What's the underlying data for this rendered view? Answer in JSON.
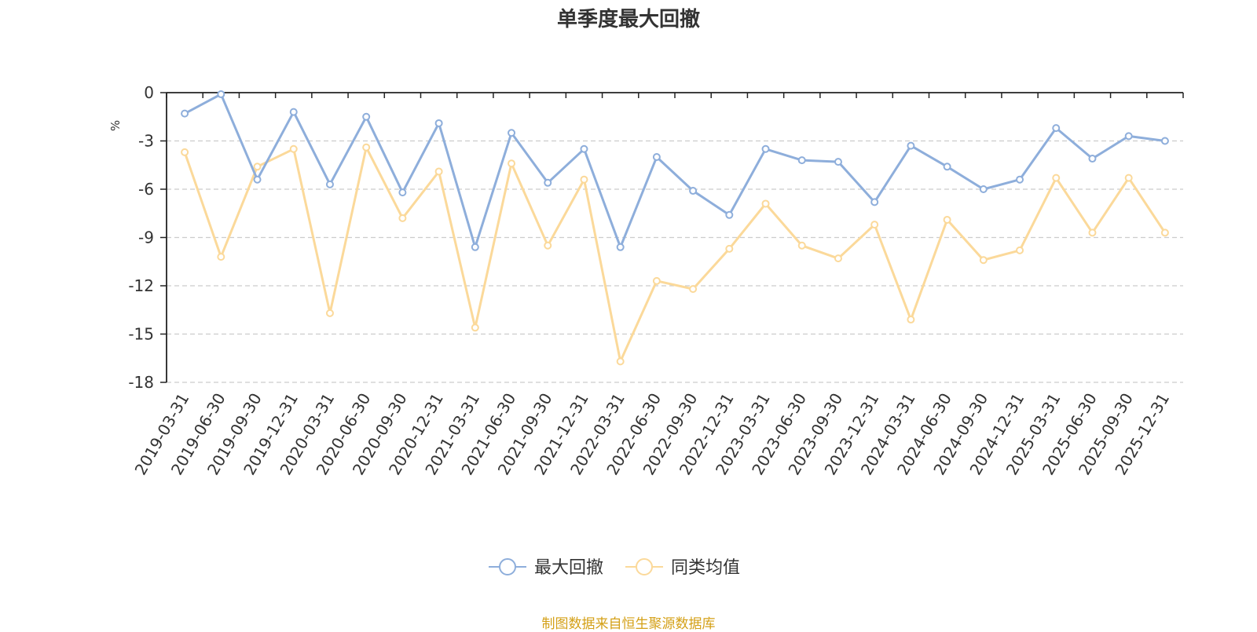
{
  "chart_data": {
    "type": "line",
    "title": "单季度最大回撤",
    "ylabel": "%",
    "ylim": [
      -18,
      0
    ],
    "yticks": [
      0,
      -3,
      -6,
      -9,
      -12,
      -15,
      -18
    ],
    "grid": true,
    "legend_position": "bottom-center",
    "categories": [
      "2019-03-31",
      "2019-06-30",
      "2019-09-30",
      "2019-12-31",
      "2020-03-31",
      "2020-06-30",
      "2020-09-30",
      "2020-12-31",
      "2021-03-31",
      "2021-06-30",
      "2021-09-30",
      "2021-12-31",
      "2022-03-31",
      "2022-06-30",
      "2022-09-30",
      "2022-12-31",
      "2023-03-31",
      "2023-06-30",
      "2023-09-30",
      "2023-12-31",
      "2024-03-31",
      "2024-06-30",
      "2024-09-30",
      "2024-12-31",
      "2025-03-31",
      "2025-06-30",
      "2025-09-30",
      "2025-12-31"
    ],
    "series": [
      {
        "name": "最大回撤",
        "color": "#8eaedb",
        "values": [
          -1.3,
          -0.1,
          -5.4,
          -1.2,
          -5.7,
          -1.5,
          -6.2,
          -1.9,
          -9.6,
          -2.5,
          -5.6,
          -3.5,
          -9.6,
          -4.0,
          -6.1,
          -7.6,
          -3.5,
          -4.2,
          -4.3,
          -6.8,
          -3.3,
          -4.6,
          -6.0,
          -5.4,
          -2.2,
          -4.1,
          -2.7,
          -3.0
        ]
      },
      {
        "name": "同类均值",
        "color": "#fbd99a",
        "values": [
          -3.7,
          -10.2,
          -4.6,
          -3.5,
          -13.7,
          -3.4,
          -7.8,
          -4.9,
          -14.6,
          -4.4,
          -9.5,
          -5.4,
          -16.7,
          -11.7,
          -12.2,
          -9.7,
          -6.9,
          -9.5,
          -10.3,
          -8.2,
          -14.1,
          -7.9,
          -10.4,
          -9.8,
          -5.3,
          -8.7,
          -5.3,
          -8.7
        ]
      }
    ]
  },
  "footer": {
    "source": "制图数据来自恒生聚源数据库"
  }
}
